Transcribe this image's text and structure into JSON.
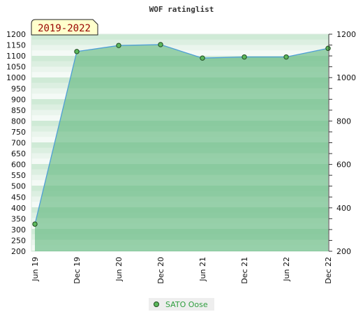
{
  "chart_data": {
    "type": "area",
    "title": "WOF ratinglist",
    "badge": "2019-2022",
    "x_labels": [
      "Jun 19",
      "Dec 19",
      "Jun 20",
      "Dec 20",
      "Jun 21",
      "Dec 21",
      "Jun 22",
      "Dec 22"
    ],
    "series": [
      {
        "name": "SATO Oose",
        "values": [
          325,
          1120,
          1148,
          1152,
          1090,
          1095,
          1095,
          1135
        ]
      }
    ],
    "y_left_ticks": [
      200,
      250,
      300,
      350,
      400,
      450,
      500,
      550,
      600,
      650,
      700,
      750,
      800,
      850,
      900,
      950,
      1000,
      1050,
      1100,
      1150,
      1200
    ],
    "y_right_ticks": [
      200,
      400,
      600,
      800,
      1000,
      1200
    ],
    "ylim": [
      200,
      1200
    ],
    "grid": false,
    "legend_position": "bottom"
  },
  "colors": {
    "line": "#4f9fd6",
    "marker_fill": "#5cb85c",
    "marker_stroke": "#1f4a1f",
    "band_dark": "#7ec495",
    "band_light": "#a8d8b5",
    "badge_bg": "#ffffcc",
    "badge_text": "#990000"
  }
}
